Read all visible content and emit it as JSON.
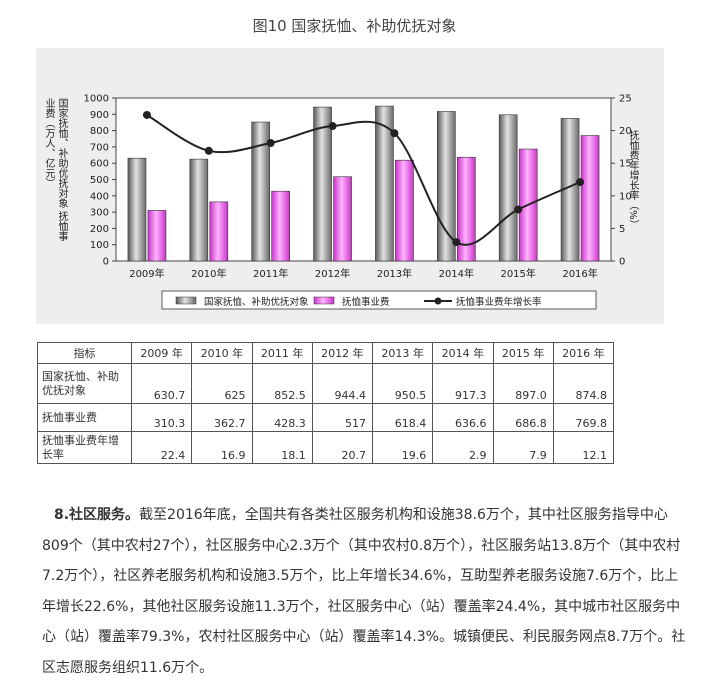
{
  "figure_title": "图10  国家抚恤、补助优抚对象",
  "chart_data": {
    "type": "bar",
    "categories": [
      "2009年",
      "2010年",
      "2011年",
      "2012年",
      "2013年",
      "2014年",
      "2015年",
      "2016年"
    ],
    "series": [
      {
        "name": "国家抚恤、补助优抚对象",
        "type": "bar",
        "axis": "left",
        "color": "#8c8c8c",
        "values": [
          630.7,
          625,
          852.5,
          944.4,
          950.5,
          917.3,
          897.0,
          874.8
        ]
      },
      {
        "name": "抚恤事业费",
        "type": "bar",
        "axis": "left",
        "color": "#ee66ee",
        "values": [
          310.3,
          362.7,
          428.3,
          517,
          618.4,
          636.6,
          686.8,
          769.8
        ]
      },
      {
        "name": "抚恤事业费年增长率",
        "type": "line",
        "axis": "right",
        "color": "#222222",
        "values": [
          22.4,
          16.9,
          18.1,
          20.7,
          19.6,
          2.9,
          7.9,
          12.1
        ]
      }
    ],
    "ylabel": "国家抚恤、补助优抚对象 抚恤事业费（万人、亿元）",
    "y2label": "抚恤费年增长率（%）",
    "ylim": [
      0,
      1000
    ],
    "y2lim": [
      0,
      25
    ],
    "yticks": [
      0,
      100,
      200,
      300,
      400,
      500,
      600,
      700,
      800,
      900,
      1000
    ],
    "y2ticks": [
      0,
      5,
      10,
      15,
      20,
      25
    ],
    "legend_position": "bottom"
  },
  "table": {
    "header": [
      "指标",
      "2009 年",
      "2010 年",
      "2011 年",
      "2012 年",
      "2013 年",
      "2014 年",
      "2015 年",
      "2016 年"
    ],
    "rows": [
      {
        "label": "国家抚恤、补助优抚对象",
        "values": [
          "630.7",
          "625",
          "852.5",
          "944.4",
          "950.5",
          "917.3",
          "897.0",
          "874.8"
        ]
      },
      {
        "label": "抚恤事业费",
        "values": [
          "310.3",
          "362.7",
          "428.3",
          "517",
          "618.4",
          "636.6",
          "686.8",
          "769.8"
        ]
      },
      {
        "label": "抚恤事业费年增长率",
        "values": [
          "22.4",
          "16.9",
          "18.1",
          "20.7",
          "19.6",
          "2.9",
          "7.9",
          "12.1"
        ]
      }
    ]
  },
  "paragraph": {
    "lead": "8.社区服务。",
    "text": "截至2016年底，全国共有各类社区服务机构和设施38.6万个，其中社区服务指导中心809个（其中农村27个），社区服务中心2.3万个（其中农村0.8万个），社区服务站13.8万个（其中农村7.2万个），社区养老服务机构和设施3.5万个，比上年增长34.6%，互助型养老服务设施7.6万个，比上年增长22.6%，其他社区服务设施11.3万个，社区服务中心（站）覆盖率24.4%，其中城市社区服务中心（站）覆盖率79.3%，农村社区服务中心（站）覆盖率14.3%。城镇便民、利民服务网点8.7万个。社区志愿服务组织11.6万个。"
  }
}
